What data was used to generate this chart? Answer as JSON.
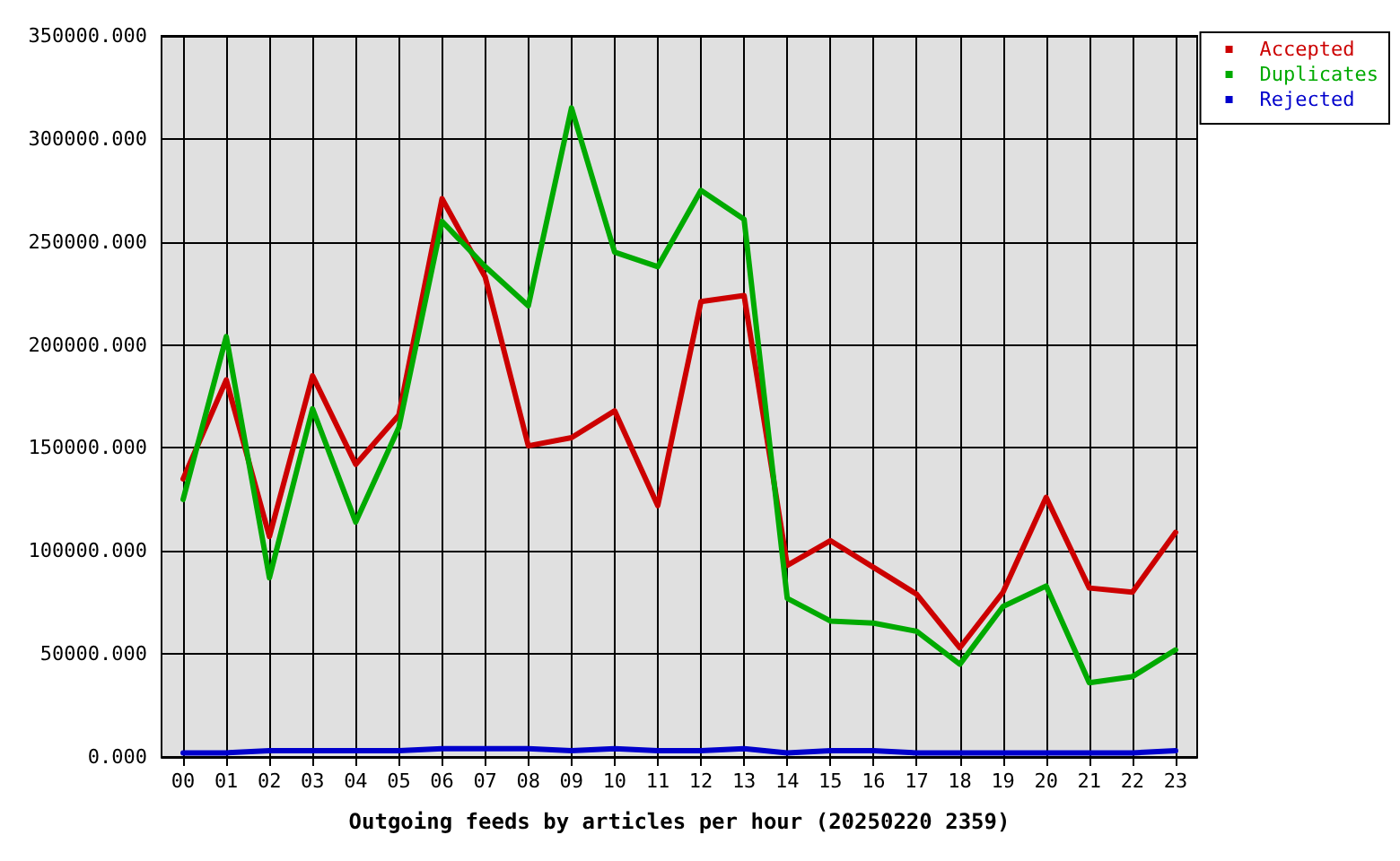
{
  "chart_data": {
    "type": "line",
    "xlabel": "Outgoing feeds by articles per hour (20250220 2359)",
    "categories": [
      "00",
      "01",
      "02",
      "03",
      "04",
      "05",
      "06",
      "07",
      "08",
      "09",
      "10",
      "11",
      "12",
      "13",
      "14",
      "15",
      "16",
      "17",
      "18",
      "19",
      "20",
      "21",
      "22",
      "23"
    ],
    "series": [
      {
        "name": "Accepted",
        "color": "#cc0000",
        "values": [
          135000,
          183000,
          107000,
          185000,
          142000,
          166000,
          271000,
          233000,
          151000,
          155000,
          168000,
          122000,
          221000,
          224000,
          93000,
          105000,
          92000,
          79000,
          53000,
          80000,
          126000,
          82000,
          80000,
          109000
        ]
      },
      {
        "name": "Duplicates",
        "color": "#00aa00",
        "values": [
          125000,
          204000,
          87000,
          169000,
          114000,
          160000,
          260000,
          238000,
          219000,
          315000,
          245000,
          238000,
          275000,
          261000,
          77000,
          66000,
          65000,
          61000,
          45000,
          73000,
          83000,
          36000,
          39000,
          52000
        ]
      },
      {
        "name": "Rejected",
        "color": "#0000cc",
        "values": [
          2000,
          2000,
          3000,
          3000,
          3000,
          3000,
          4000,
          4000,
          4000,
          3000,
          4000,
          3000,
          3000,
          4000,
          2000,
          3000,
          3000,
          2000,
          2000,
          2000,
          2000,
          2000,
          2000,
          3000
        ]
      }
    ],
    "ylim": [
      0,
      350000
    ],
    "yticks": [
      {
        "value": 0,
        "label": "0.000"
      },
      {
        "value": 50000,
        "label": "50000.000"
      },
      {
        "value": 100000,
        "label": "100000.000"
      },
      {
        "value": 150000,
        "label": "150000.000"
      },
      {
        "value": 200000,
        "label": "200000.000"
      },
      {
        "value": 250000,
        "label": "250000.000"
      },
      {
        "value": 300000,
        "label": "300000.000"
      },
      {
        "value": 350000,
        "label": "350000.000"
      }
    ],
    "grid": true,
    "legend": "top right",
    "marker": "none",
    "line_style": "solid"
  }
}
